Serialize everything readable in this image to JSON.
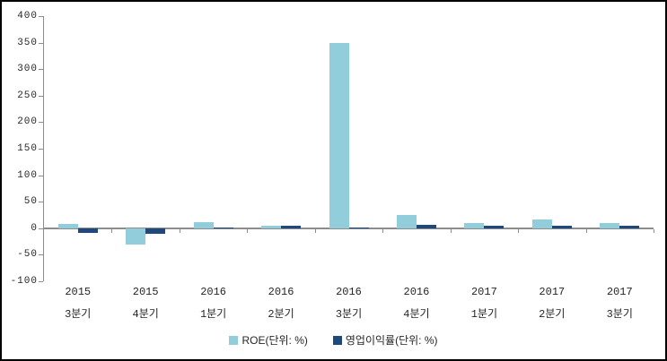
{
  "frame": {
    "background": "#ffffff",
    "border_color": "#000000"
  },
  "chart_data": {
    "type": "bar",
    "title": "",
    "xlabel": "",
    "ylabel": "",
    "categories": [
      "2015 3분기",
      "2015 4분기",
      "2016 1분기",
      "2016 2분기",
      "2016 3분기",
      "2016 4분기",
      "2017 1분기",
      "2017 2분기",
      "2017 3분기"
    ],
    "category_labels": [
      [
        "2015",
        "3분기"
      ],
      [
        "2015",
        "4분기"
      ],
      [
        "2016",
        "1분기"
      ],
      [
        "2016",
        "2분기"
      ],
      [
        "2016",
        "3분기"
      ],
      [
        "2016",
        "4분기"
      ],
      [
        "2017",
        "1분기"
      ],
      [
        "2017",
        "2분기"
      ],
      [
        "2017",
        "3분기"
      ]
    ],
    "series": [
      {
        "name": "ROE(단위: %)",
        "color": "#92CDDC",
        "values": [
          8,
          -30,
          11,
          5,
          350,
          25,
          9,
          16,
          9
        ]
      },
      {
        "name": "영업이익률(단위: %)",
        "color": "#1F497D",
        "values": [
          -9,
          -10,
          2,
          4,
          2,
          6,
          4,
          5,
          4
        ]
      }
    ],
    "ylim": [
      -100,
      400
    ],
    "yticks": [
      400,
      350,
      300,
      250,
      200,
      150,
      100,
      50,
      0,
      -50,
      -100
    ],
    "grid": false,
    "legend_position": "bottom",
    "axis_color": "#8c8c8c",
    "text_color": "#262626"
  }
}
